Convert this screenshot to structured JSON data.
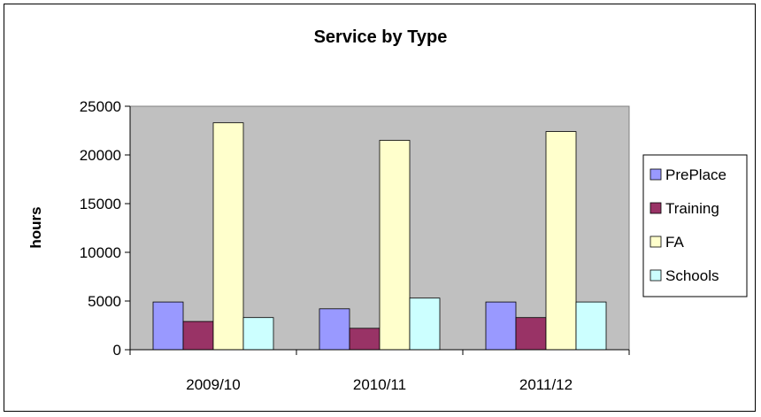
{
  "chart_data": {
    "type": "bar",
    "title": "Service by Type",
    "xlabel": "",
    "ylabel": "hours",
    "categories": [
      "2009/10",
      "2010/11",
      "2011/12"
    ],
    "ylim": [
      0,
      25000
    ],
    "yticks": [
      "0",
      "5000",
      "10000",
      "15000",
      "20000",
      "25000"
    ],
    "grid": false,
    "legend_position": "right",
    "plot_background": "#c0c0c0",
    "series": [
      {
        "name": "PrePlace",
        "color": "#9999ff",
        "values": [
          4900,
          4200,
          4900
        ]
      },
      {
        "name": "Training",
        "color": "#993366",
        "values": [
          2900,
          2200,
          3300
        ]
      },
      {
        "name": "FA",
        "color": "#ffffcc",
        "values": [
          23300,
          21500,
          22400
        ]
      },
      {
        "name": "Schools",
        "color": "#ccffff",
        "values": [
          3300,
          5300,
          4900
        ]
      }
    ]
  }
}
